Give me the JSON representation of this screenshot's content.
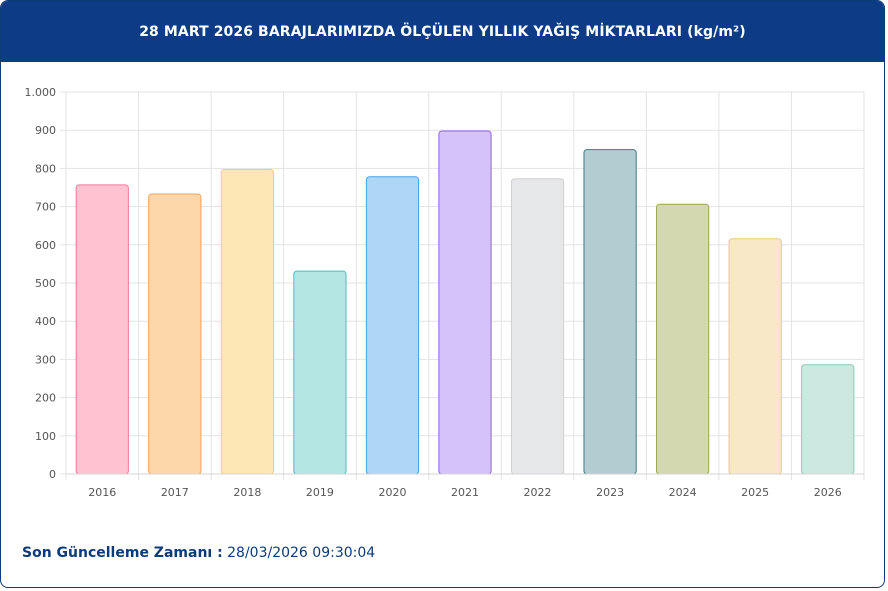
{
  "header": {
    "title": "28 MART 2026 BARAJLARIMIZDA ÖLÇÜLEN YILLIK YAĞIŞ MİKTARLARI (kg/m²)"
  },
  "footer": {
    "label": "Son Güncelleme Zamanı :",
    "value": "28/03/2026 09:30:04"
  },
  "chart_data": {
    "type": "bar",
    "title": "28 MART 2026 BARAJLARIMIZDA ÖLÇÜLEN YILLIK YAĞIŞ MİKTARLARI (kg/m²)",
    "categories": [
      "2016",
      "2017",
      "2018",
      "2019",
      "2020",
      "2021",
      "2022",
      "2023",
      "2024",
      "2025",
      "2026"
    ],
    "values": [
      757,
      733,
      797,
      531,
      778,
      898,
      773,
      849,
      706,
      616,
      286
    ],
    "ylim": [
      0,
      1000
    ],
    "yticks": [
      0,
      100,
      200,
      300,
      400,
      500,
      600,
      700,
      800,
      900,
      1000
    ],
    "ytick_labels": [
      "0",
      "100",
      "200",
      "300",
      "400",
      "500",
      "600",
      "700",
      "800",
      "900",
      "1.000"
    ],
    "grid": true,
    "colors": {
      "fills": [
        "#ffc2d1",
        "#fdd6a9",
        "#fde7b5",
        "#b4e6e4",
        "#aed7f6",
        "#d6c2fb",
        "#e6e7e9",
        "#b3ccd2",
        "#d4d8b0",
        "#f8e8c8",
        "#cce8e0"
      ],
      "strokes": [
        "#f07b9a",
        "#f3a55a",
        "#f7cf6b",
        "#4bbfbc",
        "#44a3e6",
        "#8d63e8",
        "#cfd0d3",
        "#3f7a85",
        "#9aa653",
        "#efc979",
        "#8ec9b5"
      ]
    }
  }
}
